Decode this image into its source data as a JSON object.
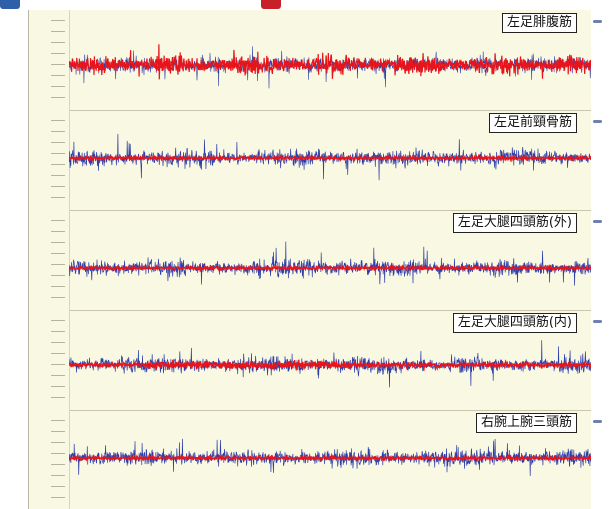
{
  "colors": {
    "blue_signal": "#2f3fa8",
    "red_signal": "#e8141c",
    "background": "#f9f8e3"
  },
  "channels": [
    {
      "label": "左足腓腹筋",
      "dominant": "red"
    },
    {
      "label": "左足前頸骨筋",
      "dominant": "blue"
    },
    {
      "label": "左足大腿四頭筋(外)",
      "dominant": "blue"
    },
    {
      "label": "左足大腿四頭筋(内)",
      "dominant": "blue"
    },
    {
      "label": "右腕上腕三頭筋",
      "dominant": "blue"
    }
  ]
}
